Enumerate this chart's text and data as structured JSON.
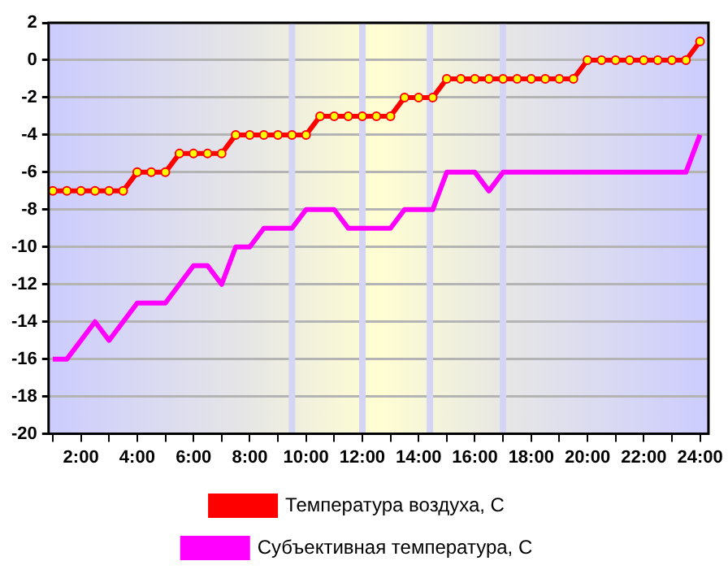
{
  "chart_data": {
    "type": "line",
    "x": [
      1,
      1.5,
      2,
      2.5,
      3,
      3.5,
      4,
      4.5,
      5,
      5.5,
      6,
      6.5,
      7,
      7.5,
      8,
      8.5,
      9,
      9.5,
      10,
      10.5,
      11,
      11.5,
      12,
      12.5,
      13,
      13.5,
      14,
      14.5,
      15,
      15.5,
      16,
      16.5,
      17,
      17.5,
      18,
      18.5,
      19,
      19.5,
      20,
      20.5,
      21,
      21.5,
      22,
      22.5,
      23,
      23.5,
      24
    ],
    "series": [
      {
        "name": "Температура воздуха, С",
        "color": "#ff0000",
        "marker": "circle",
        "values": [
          -7,
          -7,
          -7,
          -7,
          -7,
          -7,
          -6,
          -6,
          -6,
          -5,
          -5,
          -5,
          -5,
          -4,
          -4,
          -4,
          -4,
          -4,
          -4,
          -3,
          -3,
          -3,
          -3,
          -3,
          -3,
          -2,
          -2,
          -2,
          -1,
          -1,
          -1,
          -1,
          -1,
          -1,
          -1,
          -1,
          -1,
          -1,
          0,
          0,
          0,
          0,
          0,
          0,
          0,
          0,
          1
        ]
      },
      {
        "name": "Субъективная температура, С",
        "color": "#ff00ff",
        "marker": "none",
        "values": [
          -16,
          -16,
          -15,
          -14,
          -15,
          -14,
          -13,
          -13,
          -13,
          -12,
          -11,
          -11,
          -12,
          -10,
          -10,
          -9,
          -9,
          -9,
          -8,
          -8,
          -8,
          -9,
          -9,
          -9,
          -9,
          -8,
          -8,
          -8,
          -6,
          -6,
          -6,
          -7,
          -6,
          -6,
          -6,
          -6,
          -6,
          -6,
          -6,
          -6,
          -6,
          -6,
          -6,
          -6,
          -6,
          -6,
          -4
        ]
      }
    ],
    "xlim": [
      0.85,
      24.3
    ],
    "xticks": [
      {
        "value": 1,
        "label": null
      },
      {
        "value": 2,
        "label": "2:00"
      },
      {
        "value": 3,
        "label": null
      },
      {
        "value": 4,
        "label": "4:00"
      },
      {
        "value": 5,
        "label": null
      },
      {
        "value": 6,
        "label": "6:00"
      },
      {
        "value": 7,
        "label": null
      },
      {
        "value": 8,
        "label": "8:00"
      },
      {
        "value": 9,
        "label": null
      },
      {
        "value": 10,
        "label": "10:00"
      },
      {
        "value": 11,
        "label": null
      },
      {
        "value": 12,
        "label": "12:00"
      },
      {
        "value": 13,
        "label": null
      },
      {
        "value": 14,
        "label": "14:00"
      },
      {
        "value": 15,
        "label": null
      },
      {
        "value": 16,
        "label": "16:00"
      },
      {
        "value": 17,
        "label": null
      },
      {
        "value": 18,
        "label": "18:00"
      },
      {
        "value": 19,
        "label": null
      },
      {
        "value": 20,
        "label": "20:00"
      },
      {
        "value": 21,
        "label": null
      },
      {
        "value": 22,
        "label": "22:00"
      },
      {
        "value": 23,
        "label": null
      },
      {
        "value": 24,
        "label": "24:00"
      }
    ],
    "ylim": [
      -20,
      2
    ],
    "yticks": [
      -20,
      -18,
      -16,
      -14,
      -12,
      -10,
      -8,
      -6,
      -4,
      -2,
      0,
      2
    ],
    "ref_lines": [
      {
        "axis": "x",
        "value": 9.5,
        "color": "#d4d4f4"
      },
      {
        "axis": "x",
        "value": 12,
        "color": "#d4d4f4"
      },
      {
        "axis": "x",
        "value": 14.4,
        "color": "#d4d4f4"
      },
      {
        "axis": "x",
        "value": 17,
        "color": "#d4d4f4"
      }
    ],
    "grid": "y",
    "legend": "bottom",
    "line_style": "solid"
  }
}
